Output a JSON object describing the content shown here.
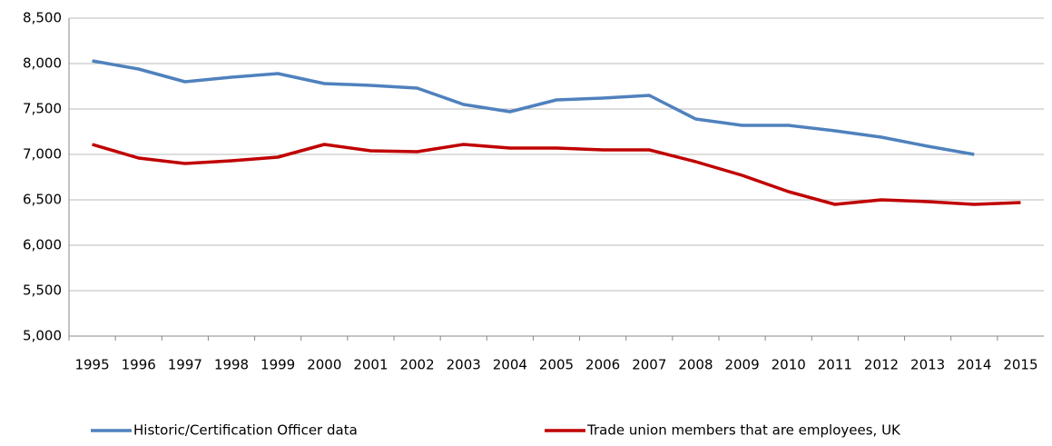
{
  "chart_data": {
    "type": "line",
    "categories": [
      "1995",
      "1996",
      "1997",
      "1998",
      "1999",
      "2000",
      "2001",
      "2002",
      "2003",
      "2004",
      "2005",
      "2006",
      "2007",
      "2008",
      "2009",
      "2010",
      "2011",
      "2012",
      "2013",
      "2014",
      "2015"
    ],
    "series": [
      {
        "name": "Historic/Certification Officer data",
        "color": "#4f81bd",
        "values": [
          8030,
          7940,
          7800,
          7850,
          7890,
          7780,
          7760,
          7730,
          7550,
          7470,
          7600,
          7620,
          7650,
          7390,
          7320,
          7320,
          7260,
          7190,
          7090,
          7000,
          null
        ]
      },
      {
        "name": "Trade union members that are employees, UK",
        "color": "#c00000",
        "values": [
          7110,
          6960,
          6900,
          6930,
          6970,
          7110,
          7040,
          7030,
          7110,
          7070,
          7070,
          7050,
          7050,
          6920,
          6770,
          6590,
          6450,
          6500,
          6480,
          6450,
          6470
        ]
      }
    ],
    "ylim": [
      5000,
      8500
    ],
    "yticks": [
      {
        "value": 5000,
        "label": "5,000"
      },
      {
        "value": 5500,
        "label": "5,500"
      },
      {
        "value": 6000,
        "label": "6,000"
      },
      {
        "value": 6500,
        "label": "6,500"
      },
      {
        "value": 7000,
        "label": "7,000"
      },
      {
        "value": 7500,
        "label": "7,500"
      },
      {
        "value": 8000,
        "label": "8,000"
      },
      {
        "value": 8500,
        "label": "8,500"
      }
    ],
    "grid": true,
    "legend": "bottom"
  }
}
